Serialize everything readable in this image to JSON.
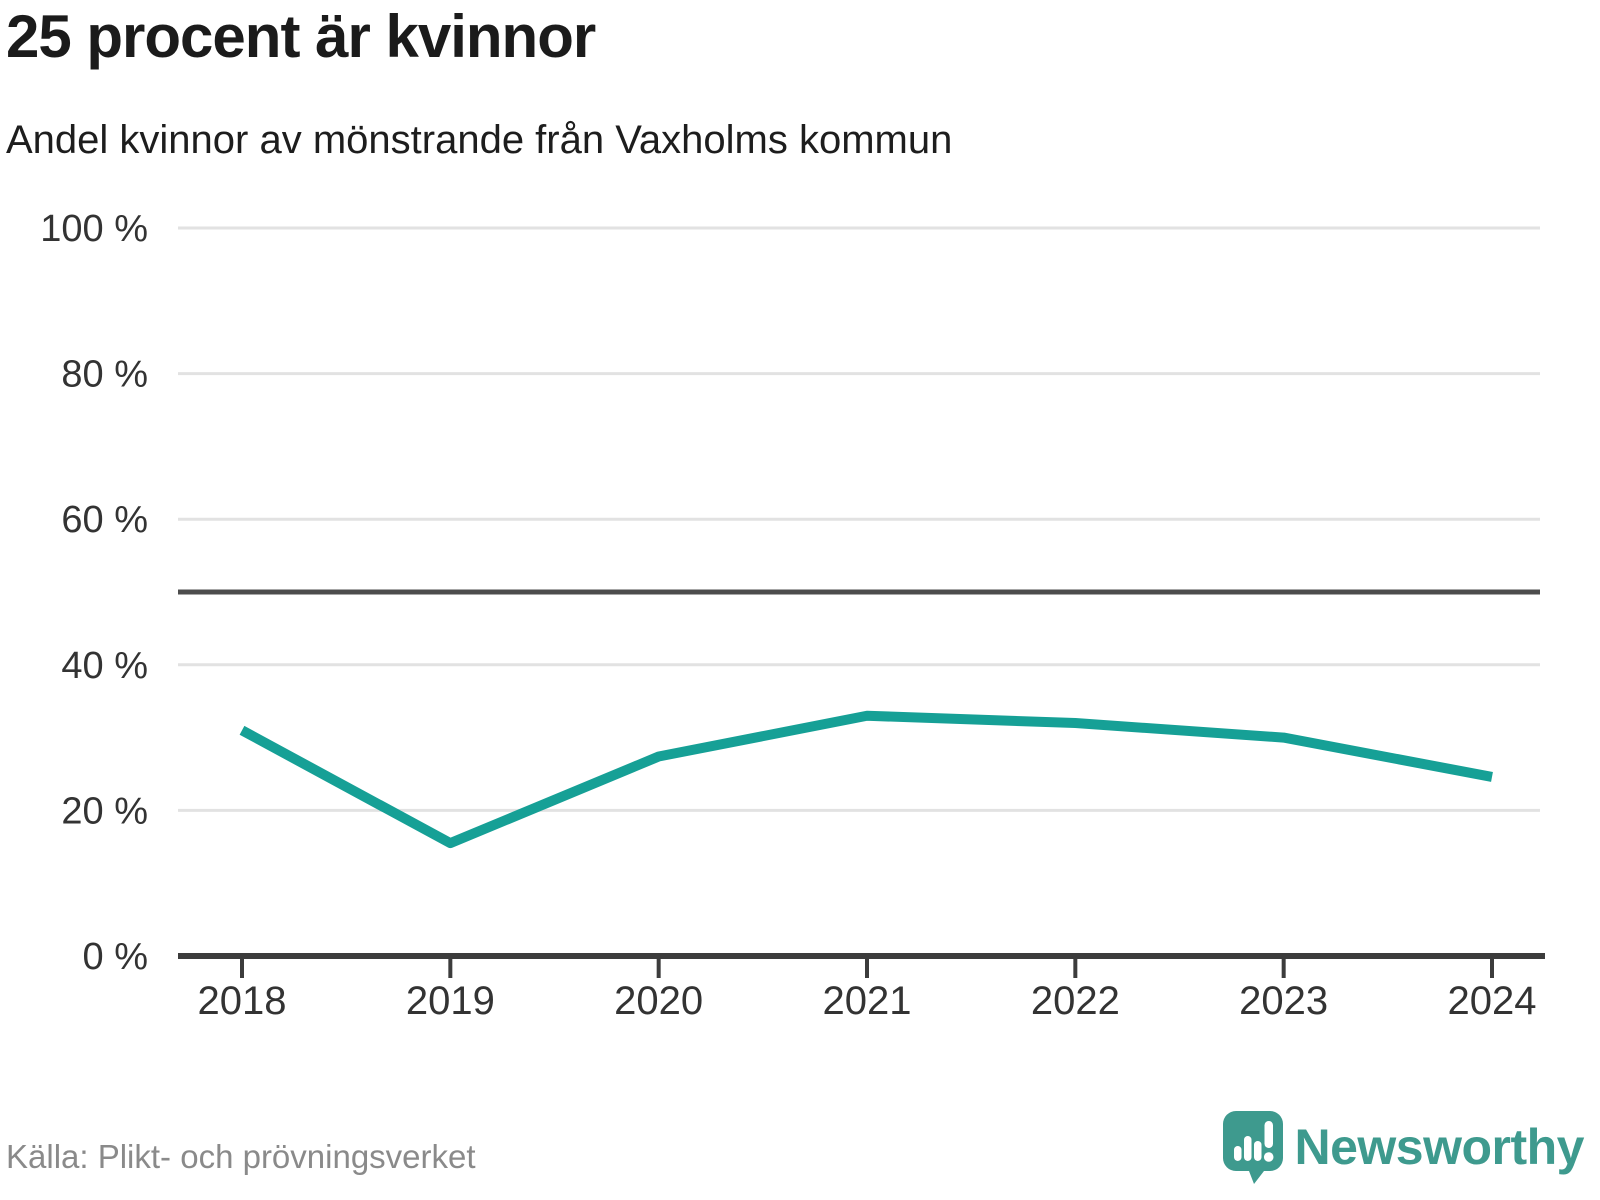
{
  "header": {
    "title": "25 procent är kvinnor",
    "subtitle": "Andel kvinnor av mönstrande från Vaxholms kommun"
  },
  "chart_data": {
    "type": "line",
    "title": "25 procent är kvinnor",
    "subtitle": "Andel kvinnor av mönstrande från Vaxholms kommun",
    "x": [
      2018,
      2019,
      2020,
      2021,
      2022,
      2023,
      2024
    ],
    "x_labels": [
      "2018",
      "2019",
      "2020",
      "2021",
      "2022",
      "2023",
      "2024"
    ],
    "series": [
      {
        "name": "Andel kvinnor av mönstrande",
        "values": [
          31,
          15.5,
          27.4,
          33,
          32,
          30,
          24.6
        ]
      }
    ],
    "unit": "%",
    "ylim": [
      0,
      100
    ],
    "yticks": [
      0,
      20,
      40,
      60,
      80,
      100
    ],
    "ytick_labels": [
      "0 %",
      "20 %",
      "40 %",
      "60 %",
      "80 %",
      "100 %"
    ],
    "reference_line": 50,
    "grid": "horizontal",
    "legend": "none",
    "colors": {
      "line": "#16a096",
      "grid": "#e2e2e2",
      "reference": "#4d4d4d",
      "axis": "#3c3c3c",
      "tick_text": "#333333"
    }
  },
  "footer": {
    "source": "Källa: Plikt- och prövningsverket",
    "brand": "Newsworthy",
    "logo_color": "#3e9a8e"
  }
}
